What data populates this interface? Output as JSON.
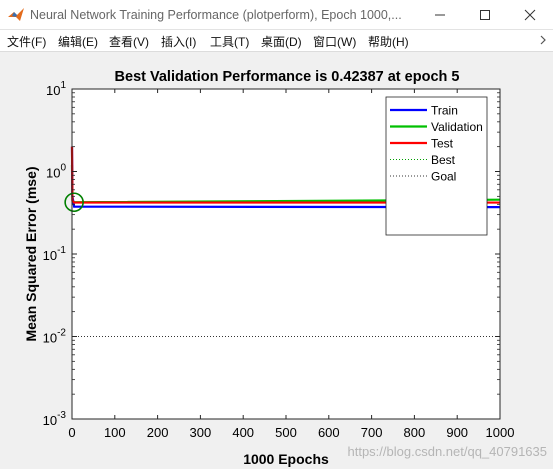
{
  "window": {
    "title": "Neural Network Training Performance (plotperform), Epoch 1000,...",
    "minimize_icon": "minimize-icon",
    "maximize_icon": "maximize-icon",
    "close_icon": "close-icon"
  },
  "menu": {
    "items": [
      "文件(F)",
      "编辑(E)",
      "查看(V)",
      "插入(I)",
      "工具(T)",
      "桌面(D)",
      "窗口(W)",
      "帮助(H)"
    ],
    "overflow_icon": "chevron-right-icon"
  },
  "watermark": "https://blog.csdn.net/qq_40791635",
  "colors": {
    "train": "#0000ff",
    "validation": "#00c000",
    "test": "#ff0000",
    "best": "#00a000",
    "goal": "#333333",
    "marker": "#008000"
  },
  "chart_data": {
    "type": "line",
    "title": "Best Validation Performance is 0.42387 at epoch 5",
    "xlabel": "1000 Epochs",
    "ylabel": "Mean Squared Error  (mse)",
    "xlim": [
      0,
      1000
    ],
    "ylim": [
      0.001,
      10
    ],
    "yscale": "log",
    "x_ticks": [
      "0",
      "100",
      "200",
      "300",
      "400",
      "500",
      "600",
      "700",
      "800",
      "900",
      "1000"
    ],
    "y_ticks": [
      {
        "base": "10",
        "exp": "1"
      },
      {
        "base": "10",
        "exp": "0"
      },
      {
        "base": "10",
        "exp": "-1"
      },
      {
        "base": "10",
        "exp": "-2"
      },
      {
        "base": "10",
        "exp": "-3"
      }
    ],
    "legend_position": "top-right",
    "series": [
      {
        "name": "Train",
        "style": "solid",
        "x": [
          0,
          1,
          5,
          1000
        ],
        "y": [
          2.0,
          0.5,
          0.375,
          0.37
        ]
      },
      {
        "name": "Validation",
        "style": "solid",
        "x": [
          0,
          1,
          5,
          1000
        ],
        "y": [
          1.2,
          0.45,
          0.42387,
          0.455
        ]
      },
      {
        "name": "Test",
        "style": "solid",
        "x": [
          0,
          1,
          5,
          1000
        ],
        "y": [
          2.0,
          0.44,
          0.42,
          0.42
        ]
      },
      {
        "name": "Best",
        "style": "dotted",
        "x": [
          5,
          5
        ],
        "y": [
          0.42387,
          0.42387
        ]
      },
      {
        "name": "Goal",
        "style": "dotted",
        "x": [
          0,
          1000
        ],
        "y": [
          0.01,
          0.01
        ]
      }
    ],
    "best_point": {
      "x": 5,
      "y": 0.42387
    }
  }
}
